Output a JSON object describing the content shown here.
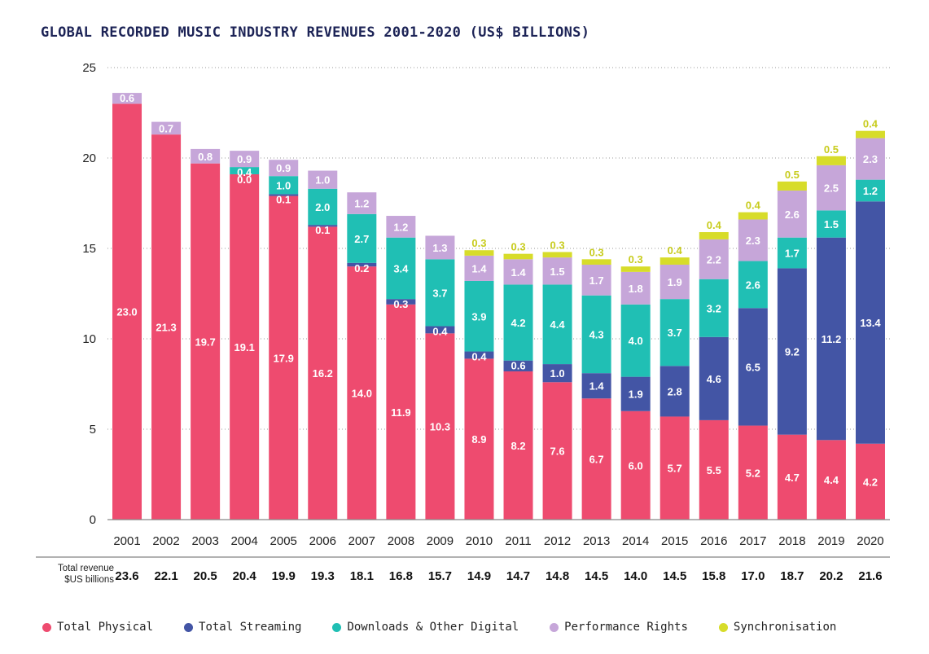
{
  "title": "GLOBAL RECORDED MUSIC INDUSTRY REVENUES 2001-2020 (US$ BILLIONS)",
  "totals_label": {
    "line1": "Total revenue",
    "line2": "$US billions"
  },
  "colors": {
    "physical": "#ee4b6f",
    "streaming": "#4355a5",
    "downloads": "#20bfb4",
    "performance": "#c6a6d9",
    "sync": "#d7dc2a",
    "axis_text": "#222222",
    "title": "#1c2356"
  },
  "chart_data": {
    "type": "bar",
    "stacked": true,
    "title": "GLOBAL RECORDED MUSIC INDUSTRY REVENUES 2001-2020 (US$ BILLIONS)",
    "categories": [
      "2001",
      "2002",
      "2003",
      "2004",
      "2005",
      "2006",
      "2007",
      "2008",
      "2009",
      "2010",
      "2011",
      "2012",
      "2013",
      "2014",
      "2015",
      "2016",
      "2017",
      "2018",
      "2019",
      "2020"
    ],
    "ylim": [
      0,
      25
    ],
    "yticks": [
      0,
      5,
      10,
      15,
      20,
      25
    ],
    "grid": "horizontal dotted",
    "legend_position": "bottom",
    "series": [
      {
        "name": "Total Physical",
        "color": "#ee4b6f",
        "values": [
          23.0,
          21.3,
          19.7,
          19.1,
          17.9,
          16.2,
          14.0,
          11.9,
          10.3,
          8.9,
          8.2,
          7.6,
          6.7,
          6.0,
          5.7,
          5.5,
          5.2,
          4.7,
          4.4,
          4.2
        ],
        "labels": [
          "23.0",
          "21.3",
          "19.7",
          "19.1",
          "17.9",
          "16.2",
          "14.0",
          "11.9",
          "10.3",
          "8.9",
          "8.2",
          "7.6",
          "6.7",
          "6.0",
          "5.7",
          "5.5",
          "5.2",
          "4.7",
          "4.4",
          "4.2"
        ]
      },
      {
        "name": "Total Streaming",
        "color": "#4355a5",
        "values": [
          0,
          0,
          0,
          0.0,
          0.1,
          0.1,
          0.2,
          0.3,
          0.4,
          0.4,
          0.6,
          1.0,
          1.4,
          1.9,
          2.8,
          4.6,
          6.5,
          9.2,
          11.2,
          13.4
        ],
        "labels": [
          "",
          "",
          "",
          "0.0",
          "0.1",
          "0.1",
          "0.2",
          "0.3",
          "0.4",
          "0.4",
          "0.6",
          "1.0",
          "1.4",
          "1.9",
          "2.8",
          "4.6",
          "6.5",
          "9.2",
          "11.2",
          "13.4"
        ]
      },
      {
        "name": "Downloads & Other Digital",
        "color": "#20bfb4",
        "values": [
          0,
          0,
          0,
          0.4,
          1.0,
          2.0,
          2.7,
          3.4,
          3.7,
          3.9,
          4.2,
          4.4,
          4.3,
          4.0,
          3.7,
          3.2,
          2.6,
          1.7,
          1.5,
          1.2
        ],
        "labels": [
          "",
          "",
          "",
          "0.4",
          "1.0",
          "2.0",
          "2.7",
          "3.4",
          "3.7",
          "3.9",
          "4.2",
          "4.4",
          "4.3",
          "4.0",
          "3.7",
          "3.2",
          "2.6",
          "1.7",
          "1.5",
          "1.2"
        ]
      },
      {
        "name": "Performance Rights",
        "color": "#c6a6d9",
        "values": [
          0.6,
          0.7,
          0.8,
          0.9,
          0.9,
          1.0,
          1.2,
          1.2,
          1.3,
          1.4,
          1.4,
          1.5,
          1.7,
          1.8,
          1.9,
          2.2,
          2.3,
          2.6,
          2.5,
          2.3
        ],
        "labels": [
          "0.6",
          "0.7",
          "0.8",
          "0.9",
          "0.9",
          "1.0",
          "1.2",
          "1.2",
          "1.3",
          "1.4",
          "1.4",
          "1.5",
          "1.7",
          "1.8",
          "1.9",
          "2.2",
          "2.3",
          "2.6",
          "2.5",
          "2.3"
        ]
      },
      {
        "name": "Synchronisation",
        "color": "#d7dc2a",
        "values": [
          0,
          0,
          0,
          0,
          0,
          0,
          0,
          0,
          0,
          0.3,
          0.3,
          0.3,
          0.3,
          0.3,
          0.4,
          0.4,
          0.4,
          0.5,
          0.5,
          0.4
        ],
        "labels": [
          "",
          "",
          "",
          "",
          "",
          "",
          "",
          "",
          "",
          "0.3",
          "0.3",
          "0.3",
          "0.3",
          "0.3",
          "0.4",
          "0.4",
          "0.4",
          "0.5",
          "0.5",
          "0.4"
        ]
      }
    ],
    "totals": [
      "23.6",
      "22.1",
      "20.5",
      "20.4",
      "19.9",
      "19.3",
      "18.1",
      "16.8",
      "15.7",
      "14.9",
      "14.7",
      "14.8",
      "14.5",
      "14.0",
      "14.5",
      "15.8",
      "17.0",
      "18.7",
      "20.2",
      "21.6"
    ]
  }
}
